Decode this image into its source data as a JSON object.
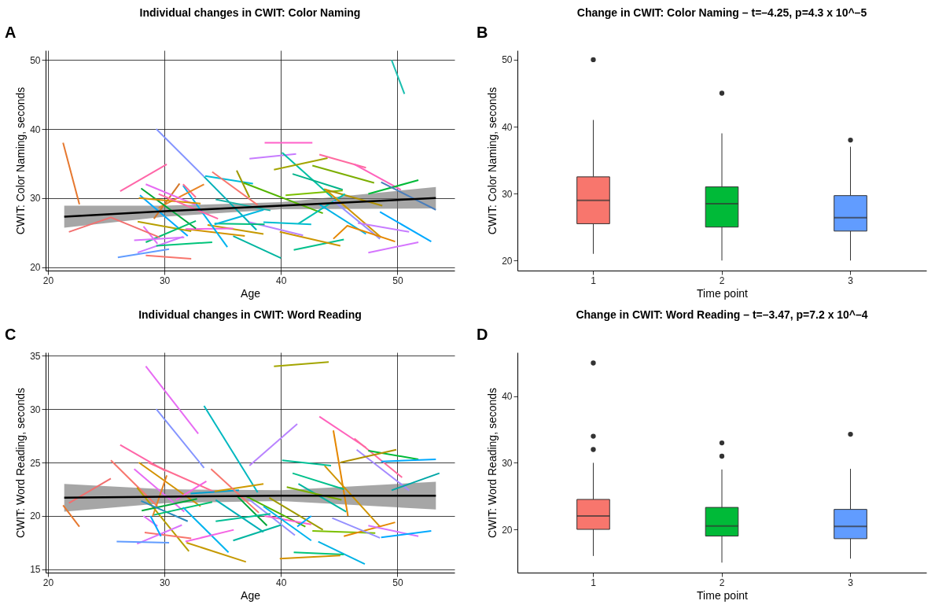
{
  "chart_data": [
    {
      "type": "line",
      "title": "Individual changes in CWIT: Color Naming",
      "xlabel": "Age",
      "ylabel": "CWIT: Color Naming, seconds",
      "annotations": [
        "A"
      ],
      "xlim": [
        19.8,
        54.9
      ],
      "ylim": [
        19.5,
        51.4
      ],
      "xticks": [
        20,
        30,
        40,
        50
      ],
      "yticks": [
        20,
        30,
        40,
        50
      ],
      "grid": true,
      "series": [
        {
          "color": "#e6782f",
          "x": [
            21.3,
            22.7
          ],
          "values": [
            38.0,
            29.1
          ]
        },
        {
          "color": "#8494ff",
          "x": [
            29.3,
            33.4
          ],
          "values": [
            40.0,
            33.1
          ]
        },
        {
          "color": "#ff61c9",
          "x": [
            38.6,
            42.7
          ],
          "values": [
            38.0,
            38.0
          ]
        },
        {
          "color": "#c77cff",
          "x": [
            37.3,
            41.3
          ],
          "values": [
            35.7,
            36.4
          ]
        },
        {
          "color": "#00bfa4",
          "x": [
            40.1,
            44.4
          ],
          "values": [
            36.6,
            30.1
          ]
        },
        {
          "color": "#ff6aa0",
          "x": [
            43.3,
            47.3
          ],
          "values": [
            36.3,
            34.4
          ]
        },
        {
          "color": "#ff62bc",
          "x": [
            46.3,
            50.3
          ],
          "values": [
            34.9,
            31.2
          ]
        },
        {
          "color": "#a3a500",
          "x": [
            39.4,
            44.0
          ],
          "values": [
            34.1,
            35.8
          ]
        },
        {
          "color": "#7cae00",
          "x": [
            42.7,
            48.0
          ],
          "values": [
            34.7,
            32.2
          ]
        },
        {
          "color": "#00ba38",
          "x": [
            47.5,
            51.8
          ],
          "values": [
            30.6,
            32.6
          ]
        },
        {
          "color": "#4a7ebb",
          "x": [
            48.6,
            53.3
          ],
          "values": [
            32.3,
            28.3
          ]
        },
        {
          "color": "#1bbfb0",
          "x": [
            49.5,
            50.6
          ],
          "values": [
            50.0,
            45.1
          ]
        },
        {
          "color": "#ff66a8",
          "x": [
            26.2,
            30.2
          ],
          "values": [
            31.0,
            34.9
          ]
        },
        {
          "color": "#00bcd8",
          "x": [
            33.5,
            37.6
          ],
          "values": [
            33.2,
            32.1
          ]
        },
        {
          "color": "#f8766d",
          "x": [
            34.1,
            38.0
          ],
          "values": [
            33.8,
            29.0
          ]
        },
        {
          "color": "#9e9a00",
          "x": [
            36.2,
            37.3
          ],
          "values": [
            34.0,
            30.1
          ]
        },
        {
          "color": "#53b400",
          "x": [
            36.8,
            43.6
          ],
          "values": [
            32.2,
            27.8
          ]
        },
        {
          "color": "#00b0b8",
          "x": [
            33.4,
            37.9
          ],
          "values": [
            33.1,
            25.4
          ]
        },
        {
          "color": "#00b38a",
          "x": [
            41.0,
            45.3
          ],
          "values": [
            33.5,
            31.2
          ]
        },
        {
          "color": "#7cc000",
          "x": [
            40.4,
            45.3
          ],
          "values": [
            30.4,
            31.1
          ]
        },
        {
          "color": "#b09000",
          "x": [
            43.7,
            48.7
          ],
          "values": [
            31.3,
            28.9
          ]
        },
        {
          "color": "#00c0b0",
          "x": [
            41.5,
            45.5
          ],
          "values": [
            26.3,
            30.6
          ]
        },
        {
          "color": "#00b2e6",
          "x": [
            43.2,
            47.3
          ],
          "values": [
            29.2,
            24.8
          ]
        },
        {
          "color": "#9590ff",
          "x": [
            44.5,
            48.5
          ],
          "values": [
            29.6,
            24.1
          ]
        },
        {
          "color": "#cf9400",
          "x": [
            43.8,
            48.6
          ],
          "values": [
            31.3,
            24.3
          ]
        },
        {
          "color": "#e58700",
          "x": [
            44.5,
            45.7,
            49.8
          ],
          "values": [
            24.1,
            26.0,
            23.7
          ]
        },
        {
          "color": "#c77cff",
          "x": [
            46.6,
            51.0
          ],
          "values": [
            26.4,
            25.1
          ]
        },
        {
          "color": "#00a9ff",
          "x": [
            48.5,
            52.9
          ],
          "values": [
            28.0,
            23.7
          ]
        },
        {
          "color": "#d575fe",
          "x": [
            47.5,
            51.8
          ],
          "values": [
            22.1,
            23.6
          ]
        },
        {
          "color": "#00c08b",
          "x": [
            41.1,
            45.4
          ],
          "values": [
            22.5,
            24.0
          ]
        },
        {
          "color": "#00b5a0",
          "x": [
            35.9,
            40.0
          ],
          "values": [
            24.5,
            21.3
          ]
        },
        {
          "color": "#cc9600",
          "x": [
            39.9,
            45.1
          ],
          "values": [
            25.1,
            23.1
          ]
        },
        {
          "color": "#b983ff",
          "x": [
            37.3,
            41.9
          ],
          "values": [
            26.5,
            24.6
          ]
        },
        {
          "color": "#00bdd0",
          "x": [
            38.5,
            42.6
          ],
          "values": [
            26.5,
            26.2
          ]
        },
        {
          "color": "#00bf7d",
          "x": [
            34.3,
            38.6
          ],
          "values": [
            26.3,
            26.2
          ]
        },
        {
          "color": "#00b8e0",
          "x": [
            34.3,
            38.5
          ],
          "values": [
            26.2,
            28.3
          ]
        },
        {
          "color": "#1cb3a8",
          "x": [
            34.4,
            39.1
          ],
          "values": [
            29.8,
            28.2
          ]
        },
        {
          "color": "#c59900",
          "x": [
            33.7,
            38.5
          ],
          "values": [
            26.1,
            24.8
          ]
        },
        {
          "color": "#d39200",
          "x": [
            31.9,
            36.9
          ],
          "values": [
            25.5,
            24.5
          ]
        },
        {
          "color": "#f564e3",
          "x": [
            31.8,
            35.9
          ],
          "values": [
            25.5,
            25.6
          ]
        },
        {
          "color": "#00b4ef",
          "x": [
            31.6,
            35.4
          ],
          "values": [
            31.8,
            22.9
          ]
        },
        {
          "color": "#ff6c91",
          "x": [
            31.6,
            32.7
          ],
          "values": [
            32.0,
            30.1
          ]
        },
        {
          "color": "#e88526",
          "x": [
            29.5,
            33.4
          ],
          "values": [
            28.6,
            32.0
          ]
        },
        {
          "color": "#d4772a",
          "x": [
            29.1,
            31.3
          ],
          "values": [
            27.0,
            32.1
          ]
        },
        {
          "color": "#e76bf3",
          "x": [
            28.4,
            32.7
          ],
          "values": [
            32.0,
            29.0
          ]
        },
        {
          "color": "#00a73a",
          "x": [
            28.0,
            32.7
          ],
          "values": [
            31.4,
            25.6
          ]
        },
        {
          "color": "#00a9ff",
          "x": [
            27.9,
            32.0
          ],
          "values": [
            30.4,
            24.5
          ]
        },
        {
          "color": "#d89000",
          "x": [
            27.8,
            33.1
          ],
          "values": [
            30.0,
            29.2
          ]
        },
        {
          "color": "#ff67a4",
          "x": [
            29.5,
            34.6
          ],
          "values": [
            30.6,
            27.0
          ]
        },
        {
          "color": "#b79f00",
          "x": [
            27.7,
            32.3
          ],
          "values": [
            26.6,
            25.2
          ]
        },
        {
          "color": "#00c06f",
          "x": [
            28.4,
            32.7
          ],
          "values": [
            23.6,
            26.7
          ]
        },
        {
          "color": "#e36ef6",
          "x": [
            28.2,
            29.4
          ],
          "values": [
            25.9,
            23.4
          ]
        },
        {
          "color": "#d874fd",
          "x": [
            27.4,
            31.7
          ],
          "values": [
            23.9,
            24.3
          ]
        },
        {
          "color": "#cf78ff",
          "x": [
            27.7,
            31.6
          ],
          "values": [
            22.1,
            24.4
          ]
        },
        {
          "color": "#00c47a",
          "x": [
            29.3,
            34.1
          ],
          "values": [
            23.1,
            23.6
          ]
        },
        {
          "color": "#619cff",
          "x": [
            26.0,
            30.4
          ],
          "values": [
            21.4,
            22.6
          ]
        },
        {
          "color": "#f8766d",
          "x": [
            28.4,
            32.3
          ],
          "values": [
            21.7,
            21.2
          ]
        },
        {
          "color": "#f26f6f",
          "x": [
            21.8,
            25.4,
            29.6
          ],
          "values": [
            25.1,
            27.2,
            24.3
          ]
        },
        {
          "color": "#000000",
          "x": [
            21.4,
            30,
            40,
            53.3
          ],
          "values": [
            27.3,
            28.1,
            28.9,
            30.0
          ],
          "lower": [
            25.7,
            27.3,
            28.4,
            28.5
          ],
          "upper": [
            28.9,
            28.9,
            29.4,
            31.6
          ]
        }
      ]
    },
    {
      "type": "box",
      "title": "Change in CWIT: Color Naming – t=–4.25, p=4.3 x 10^–5",
      "xlabel": "Time point",
      "ylabel": "CWIT: Color Naming, seconds",
      "annotations": [
        "B"
      ],
      "categories": [
        "1",
        "2",
        "3"
      ],
      "ylim": [
        18.5,
        51.4
      ],
      "yticks": [
        20,
        30,
        40,
        50
      ],
      "colors": [
        "#f8766d",
        "#00ba38",
        "#619cff"
      ],
      "boxes": [
        {
          "low": 21.0,
          "q1": 25.5,
          "median": 29.0,
          "q3": 32.5,
          "high": 41.0,
          "outliers": [
            50.0
          ]
        },
        {
          "low": 20.0,
          "q1": 25.0,
          "median": 28.5,
          "q3": 31.0,
          "high": 39.0,
          "outliers": [
            45.0
          ]
        },
        {
          "low": 20.0,
          "q1": 24.4,
          "median": 26.4,
          "q3": 29.7,
          "high": 37.0,
          "outliers": [
            38.0
          ]
        }
      ]
    },
    {
      "type": "line",
      "title": "Individual changes in CWIT: Word Reading",
      "xlabel": "Age",
      "ylabel": "CWIT: Word Reading, seconds",
      "annotations": [
        "C"
      ],
      "xlim": [
        19.8,
        54.9
      ],
      "ylim": [
        14.7,
        35.3
      ],
      "xticks": [
        20,
        30,
        40,
        50
      ],
      "yticks": [
        15,
        20,
        25,
        30,
        35
      ],
      "grid": true,
      "series": [
        {
          "color": "#e76bf3",
          "x": [
            28.4,
            32.9
          ],
          "values": [
            34.0,
            27.7
          ]
        },
        {
          "color": "#8494ff",
          "x": [
            29.3,
            33.4
          ],
          "values": [
            30.0,
            24.5
          ]
        },
        {
          "color": "#a3a500",
          "x": [
            39.4,
            44.1
          ],
          "values": [
            34.0,
            34.4
          ]
        },
        {
          "color": "#00b8c0",
          "x": [
            33.4,
            38.0
          ],
          "values": [
            30.3,
            22.2
          ]
        },
        {
          "color": "#b983ff",
          "x": [
            37.3,
            41.4
          ],
          "values": [
            24.7,
            28.6
          ]
        },
        {
          "color": "#ff62bc",
          "x": [
            43.3,
            47.3
          ],
          "values": [
            29.3,
            26.4
          ]
        },
        {
          "color": "#e58700",
          "x": [
            44.5,
            45.75
          ],
          "values": [
            28.0,
            20.0
          ]
        },
        {
          "color": "#ff6aa0",
          "x": [
            46.3,
            50.4
          ],
          "values": [
            27.25,
            23.6
          ]
        },
        {
          "color": "#a58aff",
          "x": [
            46.5,
            51.0
          ],
          "values": [
            26.2,
            22.4
          ]
        },
        {
          "color": "#00ba38",
          "x": [
            47.5,
            51.8
          ],
          "values": [
            26.1,
            25.3
          ]
        },
        {
          "color": "#b09000",
          "x": [
            45.1,
            49.9
          ],
          "values": [
            25.0,
            26.2
          ]
        },
        {
          "color": "#00a9ff",
          "x": [
            48.6,
            53.3
          ],
          "values": [
            25.1,
            25.3
          ]
        },
        {
          "color": "#00a6a6",
          "x": [
            49.5,
            53.6
          ],
          "values": [
            22.4,
            24.0
          ]
        },
        {
          "color": "#00bf96",
          "x": [
            40.1,
            44.3
          ],
          "values": [
            25.2,
            24.7
          ]
        },
        {
          "color": "#cf9400",
          "x": [
            43.75,
            48.5
          ],
          "values": [
            24.7,
            19.0
          ]
        },
        {
          "color": "#00c08b",
          "x": [
            41.0,
            45.4
          ],
          "values": [
            24.0,
            22.5
          ]
        },
        {
          "color": "#00b5a0",
          "x": [
            41.5,
            45.6
          ],
          "values": [
            23.0,
            20.4
          ]
        },
        {
          "color": "#7cae00",
          "x": [
            40.5,
            45.2
          ],
          "values": [
            22.7,
            21.5
          ]
        },
        {
          "color": "#ff66a8",
          "x": [
            26.2,
            30.1
          ],
          "values": [
            26.65,
            24.2
          ]
        },
        {
          "color": "#f8766d",
          "x": [
            25.4,
            29.4
          ],
          "values": [
            25.2,
            20.9
          ]
        },
        {
          "color": "#f26f6f",
          "x": [
            21.8,
            25.4
          ],
          "values": [
            21.2,
            23.5
          ]
        },
        {
          "color": "#e6782f",
          "x": [
            21.3,
            22.7
          ],
          "values": [
            21.0,
            19.0
          ]
        },
        {
          "color": "#d39200",
          "x": [
            27.8,
            33.1
          ],
          "values": [
            25.0,
            20.9
          ]
        },
        {
          "color": "#e76bf3",
          "x": [
            27.4,
            31.7
          ],
          "values": [
            24.4,
            20.4
          ]
        },
        {
          "color": "#e88526",
          "x": [
            30.2,
            29.0
          ],
          "values": [
            23.8,
            20.0
          ]
        },
        {
          "color": "#ff6c91",
          "x": [
            28.6,
            34.4
          ],
          "values": [
            25.0,
            22.2
          ]
        },
        {
          "color": "#f564e3",
          "x": [
            31.0,
            33.6
          ],
          "values": [
            21.5,
            23.25
          ]
        },
        {
          "color": "#b79f00",
          "x": [
            27.65,
            32.1
          ],
          "values": [
            22.65,
            16.7
          ]
        },
        {
          "color": "#00a73a",
          "x": [
            28.05,
            32.8
          ],
          "values": [
            20.5,
            21.6
          ]
        },
        {
          "color": "#2b8cbe",
          "x": [
            28.0,
            32.0
          ],
          "values": [
            21.4,
            19.5
          ]
        },
        {
          "color": "#00c06f",
          "x": [
            29.1,
            34.1
          ],
          "values": [
            20.1,
            21.3
          ]
        },
        {
          "color": "#00a0d0",
          "x": [
            32.25,
            36.4
          ],
          "values": [
            22.1,
            22.4
          ]
        },
        {
          "color": "#cf9a00",
          "x": [
            34.3,
            38.5
          ],
          "values": [
            22.3,
            23.0
          ]
        },
        {
          "color": "#f8766d",
          "x": [
            34.0,
            38.1
          ],
          "values": [
            24.4,
            20.3
          ]
        },
        {
          "color": "#00b0b8",
          "x": [
            34.4,
            38.5
          ],
          "values": [
            21.5,
            18.5
          ]
        },
        {
          "color": "#00a73a",
          "x": [
            36.2,
            38.8
          ],
          "values": [
            21.9,
            19.1
          ]
        },
        {
          "color": "#53b400",
          "x": [
            37.0,
            42.1
          ],
          "values": [
            21.85,
            19.0
          ]
        },
        {
          "color": "#9e9a00",
          "x": [
            39.0,
            43.6
          ],
          "values": [
            21.7,
            18.7
          ]
        },
        {
          "color": "#9590ff",
          "x": [
            37.2,
            41.2
          ],
          "values": [
            21.6,
            18.2
          ]
        },
        {
          "color": "#ff61c9",
          "x": [
            38.6,
            42.6
          ],
          "values": [
            20.0,
            19.2
          ]
        },
        {
          "color": "#00b4ef",
          "x": [
            38.5,
            42.6
          ],
          "values": [
            20.9,
            17.7
          ]
        },
        {
          "color": "#00a9ff",
          "x": [
            41.4,
            42.6
          ],
          "values": [
            19.0,
            20.0
          ]
        },
        {
          "color": "#00bf96",
          "x": [
            34.4,
            39.1
          ],
          "values": [
            19.5,
            20.2
          ]
        },
        {
          "color": "#00b5a0",
          "x": [
            35.9,
            40.0
          ],
          "values": [
            17.7,
            19.15
          ]
        },
        {
          "color": "#7cc000",
          "x": [
            42.7,
            48.1
          ],
          "values": [
            18.6,
            18.4
          ]
        },
        {
          "color": "#e58700",
          "x": [
            45.4,
            49.8
          ],
          "values": [
            18.1,
            19.4
          ]
        },
        {
          "color": "#9590ff",
          "x": [
            44.4,
            48.5
          ],
          "values": [
            19.8,
            17.95
          ]
        },
        {
          "color": "#d575fe",
          "x": [
            47.5,
            51.8
          ],
          "values": [
            19.1,
            18.1
          ]
        },
        {
          "color": "#00a9ff",
          "x": [
            48.6,
            52.9
          ],
          "values": [
            18.0,
            18.6
          ]
        },
        {
          "color": "#00b2e6",
          "x": [
            43.2,
            47.2
          ],
          "values": [
            17.6,
            15.5
          ]
        },
        {
          "color": "#00c47a",
          "x": [
            41.1,
            45.4
          ],
          "values": [
            16.6,
            16.4
          ]
        },
        {
          "color": "#d39200",
          "x": [
            39.9,
            45.1
          ],
          "values": [
            16.0,
            16.3
          ]
        },
        {
          "color": "#00b4ef",
          "x": [
            31.6,
            35.5
          ],
          "values": [
            20.8,
            16.6
          ]
        },
        {
          "color": "#f564e3",
          "x": [
            31.8,
            35.95
          ],
          "values": [
            17.6,
            18.7
          ]
        },
        {
          "color": "#c59900",
          "x": [
            31.9,
            37.0
          ],
          "values": [
            17.5,
            15.7
          ]
        },
        {
          "color": "#f8766d",
          "x": [
            28.3,
            32.3
          ],
          "values": [
            18.45,
            17.9
          ]
        },
        {
          "color": "#d874fd",
          "x": [
            27.65,
            31.5
          ],
          "values": [
            17.4,
            19.15
          ]
        },
        {
          "color": "#619cff",
          "x": [
            25.9,
            30.4
          ],
          "values": [
            17.6,
            17.5
          ]
        },
        {
          "color": "#e36ef6",
          "x": [
            28.2,
            29.4
          ],
          "values": [
            20.0,
            19.05
          ]
        },
        {
          "color": "#00a9ff",
          "x": [
            28.8,
            29.7
          ],
          "values": [
            20.0,
            18.1
          ]
        },
        {
          "color": "#000000",
          "x": [
            21.4,
            30,
            40,
            53.3
          ],
          "values": [
            21.7,
            21.8,
            21.9,
            21.9
          ],
          "lower": [
            20.4,
            21.2,
            21.4,
            20.6
          ],
          "upper": [
            23.0,
            22.5,
            22.4,
            23.2
          ]
        }
      ]
    },
    {
      "type": "box",
      "title": "Change in CWIT: Word Reading – t=–3.47, p=7.2 x 10^–4",
      "xlabel": "Time point",
      "ylabel": "CWIT: Word Reading, seconds",
      "annotations": [
        "D"
      ],
      "categories": [
        "1",
        "2",
        "3"
      ],
      "ylim": [
        13.5,
        46.6
      ],
      "yticks": [
        20,
        30,
        40
      ],
      "colors": [
        "#f8766d",
        "#00ba38",
        "#619cff"
      ],
      "boxes": [
        {
          "low": 16.0,
          "q1": 20.0,
          "median": 22.0,
          "q3": 24.5,
          "high": 30.0,
          "outliers": [
            45.0,
            34.0,
            32.0
          ]
        },
        {
          "low": 15.0,
          "q1": 19.0,
          "median": 20.5,
          "q3": 23.3,
          "high": 29.0,
          "outliers": [
            33.0,
            31.0
          ]
        },
        {
          "low": 15.6,
          "q1": 18.6,
          "median": 20.45,
          "q3": 23.0,
          "high": 29.1,
          "outliers": [
            34.3
          ]
        }
      ]
    }
  ]
}
